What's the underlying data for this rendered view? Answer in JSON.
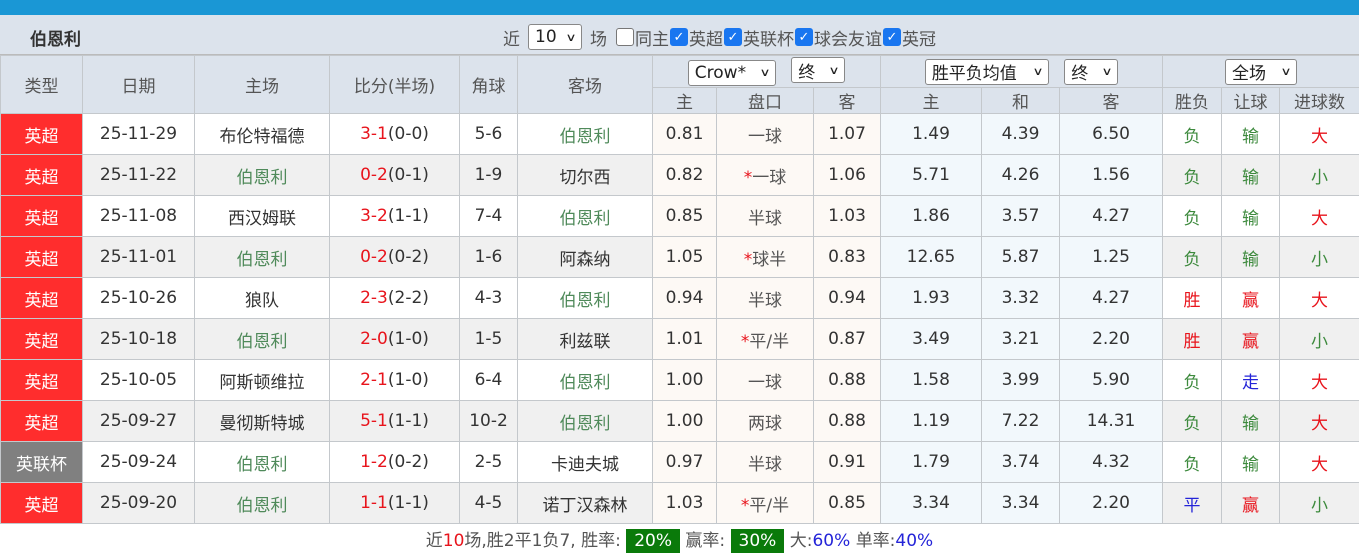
{
  "team": "伯恩利",
  "filters": {
    "near": "近",
    "count": "10",
    "unit": "场",
    "checks": [
      {
        "label": "同主",
        "checked": false
      },
      {
        "label": "英超",
        "checked": true
      },
      {
        "label": "英联杯",
        "checked": true
      },
      {
        "label": "球会友谊",
        "checked": true
      },
      {
        "label": "英冠",
        "checked": true
      }
    ]
  },
  "headers": {
    "type": "类型",
    "date": "日期",
    "home": "主场",
    "score": "比分(半场)",
    "corner": "角球",
    "away": "客场",
    "company": "Crow*",
    "asia_final": "终",
    "euro_avg": "胜平负均值",
    "euro_final": "终",
    "range": "全场",
    "sub": [
      "主",
      "盘口",
      "客",
      "主",
      "和",
      "客",
      "胜负",
      "让球",
      "进球数"
    ]
  },
  "colors": {
    "league_epl": "#ff2d2d",
    "league_cup": "#808080",
    "win": "#e8141c",
    "lose": "#3d8a3d",
    "draw": "#2424d8",
    "badge": "#0a7a0a"
  },
  "rows": [
    {
      "league": "英超",
      "date": "25-11-29",
      "home": "布伦特福德",
      "score": "3-1",
      "half": "(0-0)",
      "corner": "5-6",
      "away": "伯恩利",
      "ah": "0.81",
      "line": "一球",
      "star": false,
      "aa": "1.07",
      "eh": "1.49",
      "ed": "4.39",
      "ea": "6.50",
      "wl": "负",
      "hc": "输",
      "ou": "大"
    },
    {
      "league": "英超",
      "date": "25-11-22",
      "home": "伯恩利",
      "score": "0-2",
      "half": "(0-1)",
      "corner": "1-9",
      "away": "切尔西",
      "ah": "0.82",
      "line": "一球",
      "star": true,
      "aa": "1.06",
      "eh": "5.71",
      "ed": "4.26",
      "ea": "1.56",
      "wl": "负",
      "hc": "输",
      "ou": "小"
    },
    {
      "league": "英超",
      "date": "25-11-08",
      "home": "西汉姆联",
      "score": "3-2",
      "half": "(1-1)",
      "corner": "7-4",
      "away": "伯恩利",
      "ah": "0.85",
      "line": "半球",
      "star": false,
      "aa": "1.03",
      "eh": "1.86",
      "ed": "3.57",
      "ea": "4.27",
      "wl": "负",
      "hc": "输",
      "ou": "大"
    },
    {
      "league": "英超",
      "date": "25-11-01",
      "home": "伯恩利",
      "score": "0-2",
      "half": "(0-2)",
      "corner": "1-6",
      "away": "阿森纳",
      "ah": "1.05",
      "line": "球半",
      "star": true,
      "aa": "0.83",
      "eh": "12.65",
      "ed": "5.87",
      "ea": "1.25",
      "wl": "负",
      "hc": "输",
      "ou": "小"
    },
    {
      "league": "英超",
      "date": "25-10-26",
      "home": "狼队",
      "score": "2-3",
      "half": "(2-2)",
      "corner": "4-3",
      "away": "伯恩利",
      "ah": "0.94",
      "line": "半球",
      "star": false,
      "aa": "0.94",
      "eh": "1.93",
      "ed": "3.32",
      "ea": "4.27",
      "wl": "胜",
      "hc": "赢",
      "ou": "大"
    },
    {
      "league": "英超",
      "date": "25-10-18",
      "home": "伯恩利",
      "score": "2-0",
      "half": "(1-0)",
      "corner": "1-5",
      "away": "利兹联",
      "ah": "1.01",
      "line": "平/半",
      "star": true,
      "aa": "0.87",
      "eh": "3.49",
      "ed": "3.21",
      "ea": "2.20",
      "wl": "胜",
      "hc": "赢",
      "ou": "小"
    },
    {
      "league": "英超",
      "date": "25-10-05",
      "home": "阿斯顿维拉",
      "score": "2-1",
      "half": "(1-0)",
      "corner": "6-4",
      "away": "伯恩利",
      "ah": "1.00",
      "line": "一球",
      "star": false,
      "aa": "0.88",
      "eh": "1.58",
      "ed": "3.99",
      "ea": "5.90",
      "wl": "负",
      "hc": "走",
      "ou": "大"
    },
    {
      "league": "英超",
      "date": "25-09-27",
      "home": "曼彻斯特城",
      "score": "5-1",
      "half": "(1-1)",
      "corner": "10-2",
      "away": "伯恩利",
      "ah": "1.00",
      "line": "两球",
      "star": false,
      "aa": "0.88",
      "eh": "1.19",
      "ed": "7.22",
      "ea": "14.31",
      "wl": "负",
      "hc": "输",
      "ou": "大"
    },
    {
      "league": "英联杯",
      "date": "25-09-24",
      "home": "伯恩利",
      "score": "1-2",
      "half": "(0-2)",
      "corner": "2-5",
      "away": "卡迪夫城",
      "ah": "0.97",
      "line": "半球",
      "star": false,
      "aa": "0.91",
      "eh": "1.79",
      "ed": "3.74",
      "ea": "4.32",
      "wl": "负",
      "hc": "输",
      "ou": "大"
    },
    {
      "league": "英超",
      "date": "25-09-20",
      "home": "伯恩利",
      "score": "1-1",
      "half": "(1-1)",
      "corner": "4-5",
      "away": "诺丁汉森林",
      "ah": "1.03",
      "line": "平/半",
      "star": true,
      "aa": "0.85",
      "eh": "3.34",
      "ed": "3.34",
      "ea": "2.20",
      "wl": "平",
      "hc": "赢",
      "ou": "小"
    }
  ],
  "footer": {
    "p1": "近",
    "n": "10",
    "p2": "场,胜2平1负7, 胜率:",
    "win_rate": "20%",
    "p3": "赢率:",
    "hc_rate": "30%",
    "p4": "大:",
    "big": "60%",
    "p5": "单率:",
    "odd": "40%"
  }
}
